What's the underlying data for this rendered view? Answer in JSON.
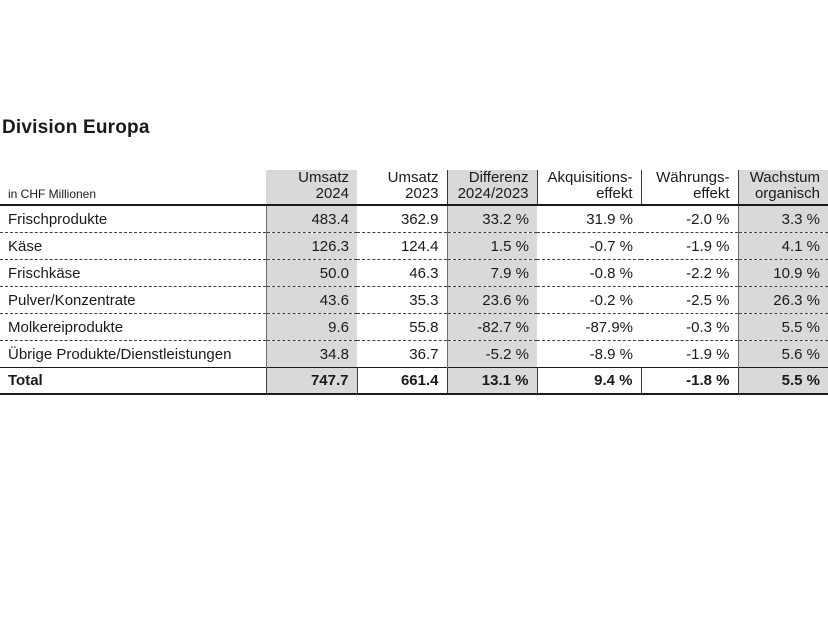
{
  "title": "Division Europa",
  "colors": {
    "shaded_column": "#d9d9d9",
    "rule": "#1a1a1a",
    "text": "#1a1a1a",
    "background": "#ffffff"
  },
  "table": {
    "unit_label": "in CHF Millionen",
    "columns": [
      {
        "line1": "Umsatz",
        "line2": "2024",
        "shaded": true
      },
      {
        "line1": "Umsatz",
        "line2": "2023",
        "shaded": false
      },
      {
        "line1": "Differenz",
        "line2": "2024/2023",
        "shaded": true
      },
      {
        "line1": "Akquisitions-",
        "line2": "effekt",
        "shaded": false
      },
      {
        "line1": "Währungs-",
        "line2": "effekt",
        "shaded": false
      },
      {
        "line1": "Wachstum",
        "line2": "organisch",
        "shaded": true
      }
    ],
    "rows": [
      {
        "label": "Frischprodukte",
        "values": [
          "483.4",
          "362.9",
          "33.2 %",
          "31.9 %",
          "-2.0 %",
          "3.3 %"
        ]
      },
      {
        "label": "Käse",
        "values": [
          "126.3",
          "124.4",
          "1.5 %",
          "-0.7 %",
          "-1.9 %",
          "4.1 %"
        ]
      },
      {
        "label": "Frischkäse",
        "values": [
          "50.0",
          "46.3",
          "7.9 %",
          "-0.8 %",
          "-2.2 %",
          "10.9 %"
        ]
      },
      {
        "label": "Pulver/Konzentrate",
        "values": [
          "43.6",
          "35.3",
          "23.6 %",
          "-0.2 %",
          "-2.5 %",
          "26.3 %"
        ]
      },
      {
        "label": "Molkereiprodukte",
        "values": [
          "9.6",
          "55.8",
          "-82.7 %",
          "-87.9%",
          "-0.3 %",
          "5.5 %"
        ]
      },
      {
        "label": "Übrige Produkte/Dienstleistungen",
        "values": [
          "34.8",
          "36.7",
          "-5.2 %",
          "-8.9 %",
          "-1.9 %",
          "5.6 %"
        ]
      }
    ],
    "total": {
      "label": "Total",
      "values": [
        "747.7",
        "661.4",
        "13.1 %",
        "9.4 %",
        "-1.8 %",
        "5.5 %"
      ]
    }
  }
}
